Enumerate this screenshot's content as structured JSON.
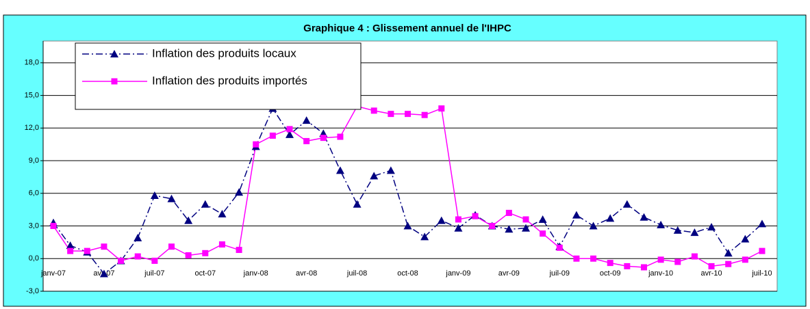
{
  "chart_data": {
    "type": "line",
    "title": "Graphique 4 : Glissement annuel de l'IHPC",
    "categories": [
      "janv-07",
      null,
      null,
      "avr-07",
      null,
      null,
      "juil-07",
      null,
      null,
      "oct-07",
      null,
      null,
      "janv-08",
      null,
      null,
      "avr-08",
      null,
      null,
      "juil-08",
      null,
      null,
      "oct-08",
      null,
      null,
      "janv-09",
      null,
      null,
      "avr-09",
      null,
      null,
      "juil-09",
      null,
      null,
      "oct-09",
      null,
      null,
      "janv-10",
      null,
      null,
      "avr-10",
      null,
      null,
      "juil-10"
    ],
    "series": [
      {
        "name": "Inflation des produits locaux",
        "color": "#000080",
        "marker": "triangle",
        "values": [
          3.3,
          1.2,
          0.6,
          -1.4,
          -0.2,
          1.9,
          5.8,
          5.5,
          3.5,
          5.0,
          4.1,
          6.1,
          10.3,
          13.8,
          11.4,
          12.7,
          11.5,
          8.1,
          5.0,
          7.6,
          8.1,
          3.0,
          2.0,
          3.5,
          2.8,
          4.0,
          3.0,
          2.7,
          2.8,
          3.6,
          1.1,
          4.0,
          3.0,
          3.7,
          5.0,
          3.8,
          3.1,
          2.6,
          2.4,
          2.9,
          0.5,
          1.8,
          3.2
        ]
      },
      {
        "name": "Inflation des produits importés",
        "color": "#FF00FF",
        "marker": "square",
        "values": [
          3.0,
          0.7,
          0.7,
          1.1,
          -0.2,
          0.2,
          -0.2,
          1.1,
          0.3,
          0.5,
          1.3,
          0.8,
          10.5,
          11.3,
          11.9,
          10.8,
          11.1,
          11.2,
          14.0,
          13.6,
          13.3,
          13.3,
          13.2,
          13.8,
          3.6,
          3.9,
          3.0,
          4.2,
          3.6,
          2.3,
          1.0,
          0.0,
          0.0,
          -0.4,
          -0.7,
          -0.8,
          -0.1,
          -0.3,
          0.2,
          -0.7,
          -0.5,
          -0.1,
          0.7
        ]
      }
    ],
    "ylim": [
      -3,
      20
    ],
    "yticks": [
      {
        "value": -3,
        "label": "-3,0"
      },
      {
        "value": 0,
        "label": "0,0"
      },
      {
        "value": 3,
        "label": "3,0"
      },
      {
        "value": 6,
        "label": "6,0"
      },
      {
        "value": 9,
        "label": "9,0"
      },
      {
        "value": 12,
        "label": "12,0"
      },
      {
        "value": 15,
        "label": "15,0"
      },
      {
        "value": 18,
        "label": "18,0"
      }
    ],
    "grid": true
  }
}
